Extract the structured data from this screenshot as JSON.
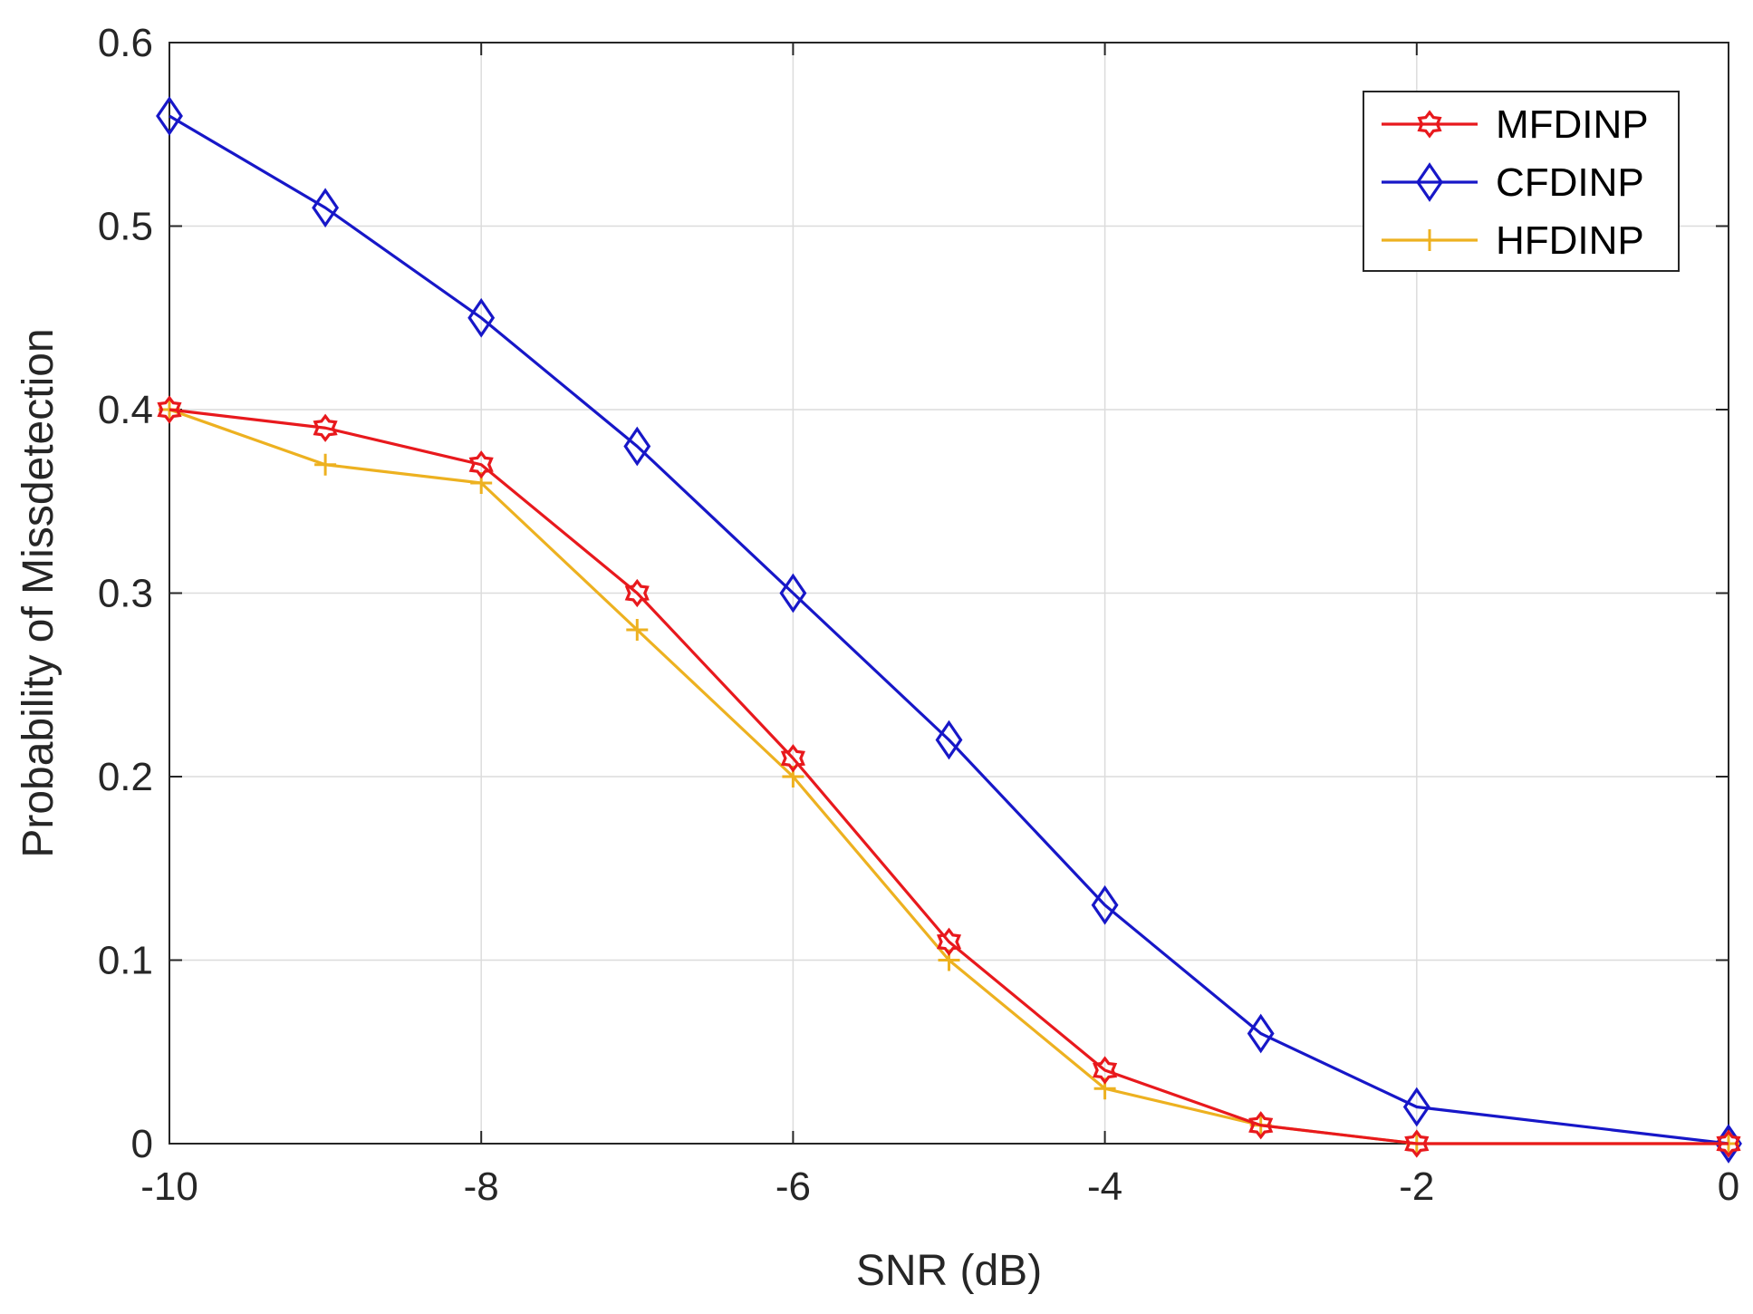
{
  "chart_data": {
    "type": "line",
    "title": "",
    "xlabel": "SNR (dB)",
    "ylabel": "Probability of Missdetection",
    "xlim": [
      -10,
      0
    ],
    "ylim": [
      0,
      0.6
    ],
    "xticks": [
      -10,
      -8,
      -6,
      -4,
      -2,
      0
    ],
    "xtick_labels": [
      "-10",
      "-8",
      "-6",
      "-4",
      "-2",
      "0"
    ],
    "yticks": [
      0,
      0.1,
      0.2,
      0.3,
      0.4,
      0.5,
      0.6
    ],
    "ytick_labels": [
      "0",
      "0.1",
      "0.2",
      "0.3",
      "0.4",
      "0.5",
      "0.6"
    ],
    "grid": true,
    "legend_position": "top-right",
    "x": [
      -10,
      -9,
      -8,
      -7,
      -6,
      -5,
      -4,
      -3,
      -2,
      0
    ],
    "series": [
      {
        "name": "MFDINP",
        "color": "#e8191d",
        "marker": "hexagram",
        "values": [
          0.4,
          0.39,
          0.37,
          0.3,
          0.21,
          0.11,
          0.04,
          0.01,
          0.0,
          0.0
        ]
      },
      {
        "name": "CFDINP",
        "color": "#1717c8",
        "marker": "diamond",
        "values": [
          0.56,
          0.51,
          0.45,
          0.38,
          0.3,
          0.22,
          0.13,
          0.06,
          0.02,
          0.0
        ]
      },
      {
        "name": "HFDINP",
        "color": "#edb120",
        "marker": "plus",
        "values": [
          0.4,
          0.37,
          0.36,
          0.28,
          0.2,
          0.1,
          0.03,
          0.01,
          0.0,
          0.0
        ]
      }
    ]
  }
}
